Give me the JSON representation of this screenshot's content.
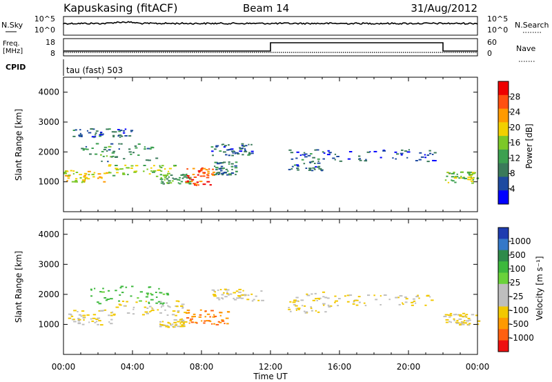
{
  "header": {
    "station": "Kapuskasing (fitACF)",
    "beam": "Beam 14",
    "date": "31/Aug/2012"
  },
  "noise_panel": {
    "left_label": "N.Sky",
    "right_label": "N.Search",
    "left_ticks": [
      {
        "base": "10",
        "exp": "^5"
      },
      {
        "base": "10",
        "exp": "^0"
      }
    ],
    "right_ticks": [
      {
        "base": "10",
        "exp": "^5"
      },
      {
        "base": "10",
        "exp": "^0"
      }
    ]
  },
  "freq_panel": {
    "left_label_line1": "Freq.",
    "left_label_line2": "[MHz]",
    "right_label": "Nave",
    "left_ticks": [
      "18",
      "8"
    ],
    "right_ticks": [
      "60",
      "0"
    ],
    "step": {
      "start": "12:00",
      "end": "22:00"
    }
  },
  "cpid_panel": {
    "label": "CPID",
    "mode_text": "tau (fast) 503"
  },
  "power_panel": {
    "ylabel": "Slant Range [km]",
    "colorbar_label": "Power [dB]",
    "colorbar_ticks": [
      "28",
      "24",
      "20",
      "16",
      "12",
      "8",
      "4"
    ],
    "colorbar_colors": [
      "#ee0000",
      "#ff5010",
      "#ff9a00",
      "#f2d000",
      "#7cc828",
      "#3ca050",
      "#3a7a5a",
      "#1e4aa0",
      "#0000ff"
    ]
  },
  "velocity_panel": {
    "ylabel": "Slant Range [km]",
    "colorbar_label": "Velocity [m s⁻¹]",
    "colorbar_ticks": [
      "1000",
      "500",
      "100",
      "25",
      "-25",
      "-100",
      "-500",
      "-1000"
    ],
    "colorbar_colors": [
      "#1e3cb0",
      "#3478c8",
      "#2e8a4a",
      "#3cb83c",
      "#6ad23a",
      "#bebebe",
      "#bebebe",
      "#f2c800",
      "#ff9a00",
      "#ff6010",
      "#ee1010"
    ]
  },
  "x_axis": {
    "label": "Time UT",
    "ticks": [
      "00:00",
      "04:00",
      "08:00",
      "12:00",
      "16:00",
      "20:00",
      "00:00"
    ]
  },
  "chart_data": [
    {
      "type": "heatmap",
      "title": "Power",
      "xlabel": "Time UT",
      "ylabel": "Slant Range [km]",
      "xlim": [
        0,
        24
      ],
      "ylim": [
        0,
        4500
      ],
      "yticks": [
        1000,
        2000,
        3000,
        4000
      ],
      "colorbar": {
        "label": "Power [dB]",
        "range": [
          0,
          32
        ],
        "ticks": [
          4,
          8,
          12,
          16,
          20,
          24,
          28
        ]
      },
      "features": [
        {
          "t_start": 0.0,
          "t_end": 2.5,
          "range_start": 1000,
          "range_end": 1400,
          "value": 20
        },
        {
          "t_start": 2.5,
          "t_end": 6.5,
          "range_start": 1200,
          "range_end": 1600,
          "value": 16
        },
        {
          "t_start": 5.5,
          "t_end": 7.5,
          "range_start": 950,
          "range_end": 1300,
          "value": 12
        },
        {
          "t_start": 7.0,
          "t_end": 8.7,
          "range_start": 900,
          "range_end": 1500,
          "value": 28
        },
        {
          "t_start": 8.7,
          "t_end": 10.0,
          "range_start": 1250,
          "range_end": 1700,
          "value": 8
        },
        {
          "t_start": 1.0,
          "t_end": 5.5,
          "range_start": 1700,
          "range_end": 2300,
          "value": 10
        },
        {
          "t_start": 0.5,
          "t_end": 4.0,
          "range_start": 2500,
          "range_end": 2800,
          "value": 6
        },
        {
          "t_start": 8.5,
          "t_end": 11.0,
          "range_start": 1900,
          "range_end": 2300,
          "value": 6
        },
        {
          "t_start": 13.0,
          "t_end": 15.0,
          "range_start": 1400,
          "range_end": 2100,
          "value": 6
        },
        {
          "t_start": 15.0,
          "t_end": 21.5,
          "range_start": 1700,
          "range_end": 2100,
          "value": 4
        },
        {
          "t_start": 22.0,
          "t_end": 24.0,
          "range_start": 950,
          "range_end": 1350,
          "value": 16
        }
      ]
    },
    {
      "type": "heatmap",
      "title": "Velocity",
      "xlabel": "Time UT",
      "ylabel": "Slant Range [km]",
      "xlim": [
        0,
        24
      ],
      "ylim": [
        0,
        4500
      ],
      "yticks": [
        1000,
        2000,
        3000,
        4000
      ],
      "colorbar": {
        "label": "Velocity [m s⁻¹]",
        "range": [
          -1000,
          1000
        ],
        "ticks": [
          1000,
          500,
          100,
          25,
          -25,
          -100,
          -500,
          -1000
        ]
      },
      "features": [
        {
          "t_start": 0.0,
          "t_end": 3.0,
          "range_start": 1000,
          "range_end": 1500,
          "value": 0
        },
        {
          "t_start": 3.0,
          "t_end": 7.0,
          "range_start": 1300,
          "range_end": 1800,
          "value": 0
        },
        {
          "t_start": 1.5,
          "t_end": 6.0,
          "range_start": 1700,
          "range_end": 2300,
          "value": 150
        },
        {
          "t_start": 5.5,
          "t_end": 7.0,
          "range_start": 900,
          "range_end": 1200,
          "value": 0
        },
        {
          "t_start": 7.0,
          "t_end": 9.5,
          "range_start": 1000,
          "range_end": 1500,
          "value": -100
        },
        {
          "t_start": 8.5,
          "t_end": 11.5,
          "range_start": 1800,
          "range_end": 2200,
          "value": 0
        },
        {
          "t_start": 13.0,
          "t_end": 15.5,
          "range_start": 1400,
          "range_end": 2100,
          "value": 0
        },
        {
          "t_start": 15.5,
          "t_end": 21.5,
          "range_start": 1650,
          "range_end": 2000,
          "value": 0
        },
        {
          "t_start": 22.0,
          "t_end": 24.0,
          "range_start": 1000,
          "range_end": 1400,
          "value": 0
        }
      ]
    }
  ]
}
